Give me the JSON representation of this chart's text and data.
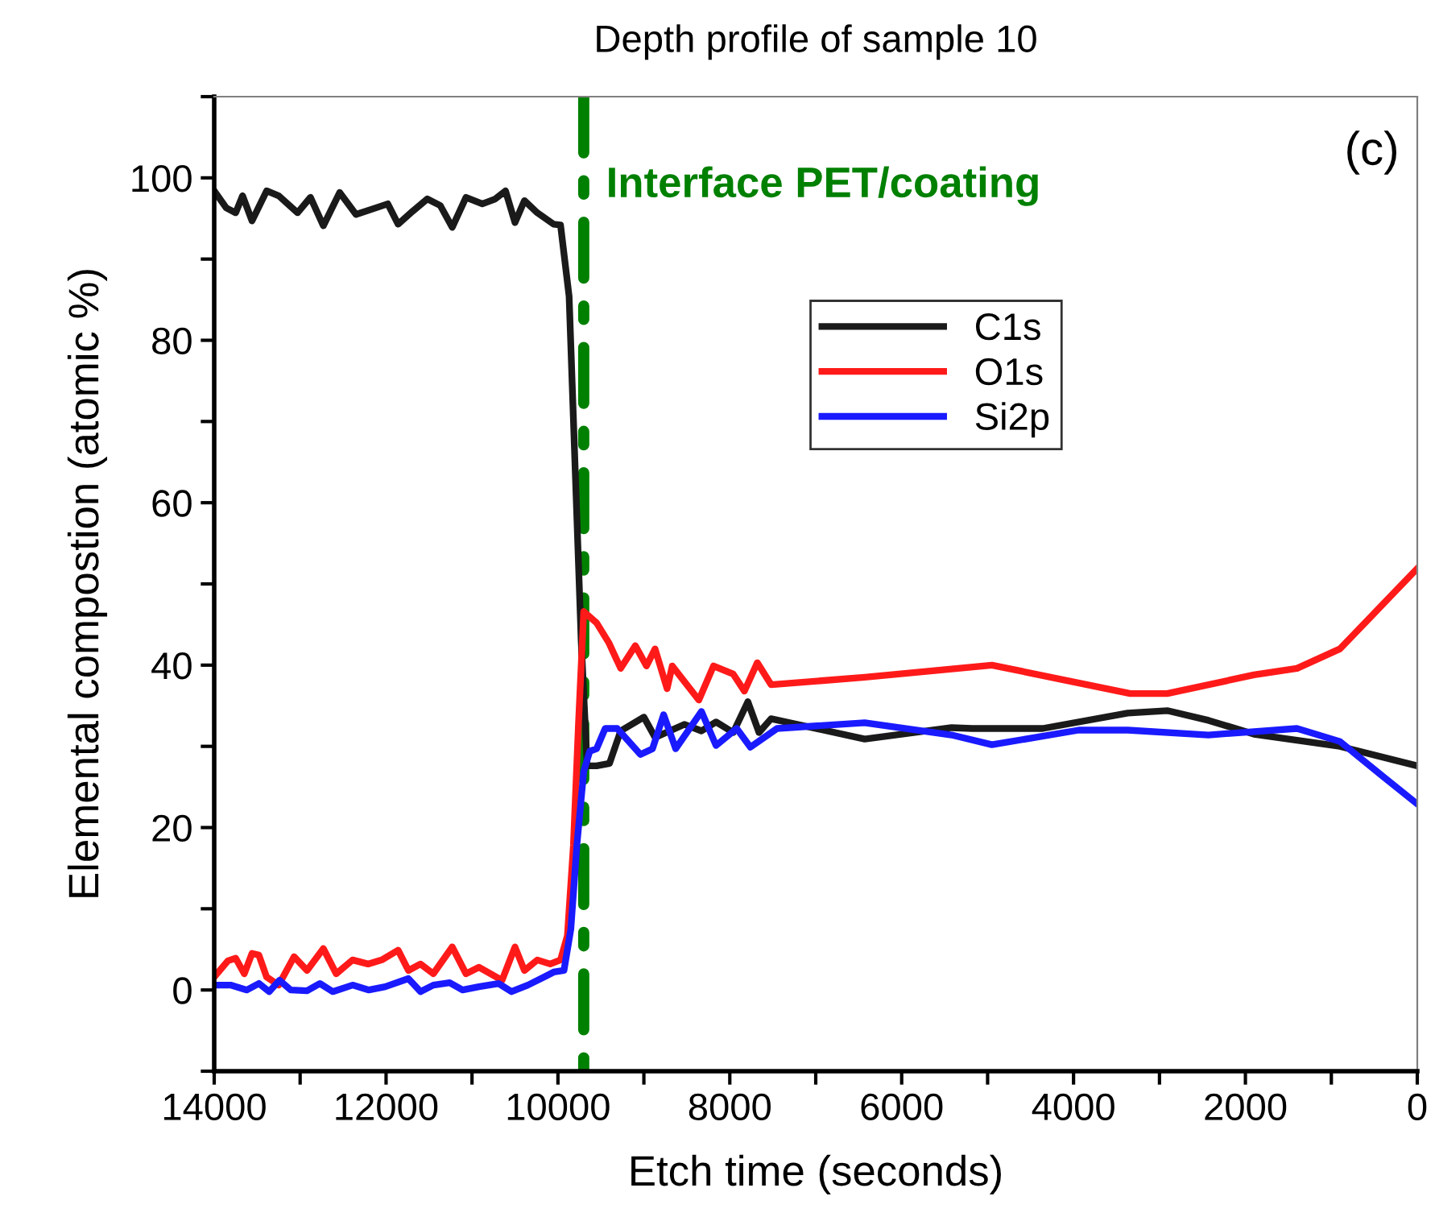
{
  "chart_data": {
    "type": "line",
    "title": "Depth profile of sample 10",
    "xlabel": "Etch time (seconds)",
    "ylabel": "Elemental compostion (atomic %)",
    "xlim": [
      14000,
      0
    ],
    "ylim": [
      -10,
      110
    ],
    "xticks": [
      14000,
      {
        "value": 13000,
        "label": null
      },
      12000,
      {
        "value": 11000,
        "label": null
      },
      10000,
      {
        "value": 9000,
        "label": null
      },
      8000,
      {
        "value": 7000,
        "label": null
      },
      6000,
      {
        "value": 5000,
        "label": null
      },
      4000,
      {
        "value": 3000,
        "label": null
      },
      2000,
      {
        "value": 1000,
        "label": null
      },
      0
    ],
    "yticks": [
      {
        "value": -10,
        "label": null
      },
      0,
      {
        "value": 10,
        "label": null
      },
      20,
      {
        "value": 30,
        "label": null
      },
      40,
      {
        "value": 50,
        "label": null
      },
      60,
      {
        "value": 70,
        "label": null
      },
      80,
      {
        "value": 90,
        "label": null
      },
      100,
      {
        "value": 110,
        "label": null
      }
    ],
    "grid": false,
    "legend": "top",
    "marker": "none",
    "line_style": "solid",
    "annotations": [
      "(c)"
    ],
    "ref_lines": [
      {
        "axis": "x",
        "value": 9700,
        "label": "Interface PET/coating",
        "color": "#008000",
        "line_style": "dashdot"
      }
    ],
    "series": [
      {
        "name": "C1s",
        "color": "#1a1a1a",
        "x": [
          14000,
          13860,
          13750,
          13670,
          13560,
          13390,
          13250,
          13030,
          12880,
          12730,
          12540,
          12350,
          12120,
          11980,
          11860,
          11690,
          11520,
          11370,
          11230,
          11070,
          10880,
          10730,
          10610,
          10500,
          10390,
          10240,
          10050,
          9970,
          9870,
          9800,
          9730,
          9660,
          9550,
          9400,
          9270,
          9000,
          8870,
          8530,
          8330,
          8160,
          7960,
          7790,
          7660,
          7520,
          6430,
          5420,
          5180,
          4360,
          3370,
          2910,
          2430,
          1900,
          900,
          0
        ],
        "values": [
          98.4,
          96.3,
          95.7,
          97.8,
          94.7,
          98.4,
          97.8,
          95.7,
          97.6,
          94.1,
          98.2,
          95.5,
          96.3,
          96.8,
          94.3,
          95.9,
          97.4,
          96.6,
          93.9,
          97.6,
          96.8,
          97.4,
          98.4,
          94.5,
          97.2,
          95.7,
          94.3,
          94.2,
          85.4,
          64.3,
          43.2,
          27.6,
          27.6,
          27.9,
          31.9,
          33.6,
          31.1,
          32.7,
          31.9,
          33,
          31.7,
          35.5,
          31.7,
          33.4,
          30.9,
          32.3,
          32.2,
          32.2,
          34.1,
          34.4,
          33.2,
          31.5,
          30,
          27.6
        ]
      },
      {
        "name": "O1s",
        "color": "#ff1a1a",
        "x": [
          14000,
          13840,
          13750,
          13650,
          13560,
          13480,
          13390,
          13250,
          13070,
          12920,
          12730,
          12580,
          12390,
          12210,
          12050,
          11860,
          11740,
          11600,
          11450,
          11230,
          11070,
          10920,
          10650,
          10500,
          10390,
          10240,
          10090,
          9970,
          9890,
          9820,
          9760,
          9700,
          9550,
          9410,
          9270,
          9100,
          8970,
          8870,
          8730,
          8670,
          8360,
          8190,
          7960,
          7830,
          7680,
          7520,
          6430,
          4950,
          3340,
          2910,
          1900,
          1400,
          900,
          400,
          0
        ],
        "values": [
          1.6,
          3.6,
          3.9,
          2,
          4.5,
          4.3,
          1.6,
          0.6,
          4.1,
          2.4,
          5.1,
          2,
          3.7,
          3.2,
          3.7,
          4.9,
          2.4,
          3.2,
          2,
          5.3,
          2,
          2.8,
          1.2,
          5.3,
          2.4,
          3.7,
          3.2,
          3.7,
          6.7,
          17.8,
          33,
          46.6,
          45.2,
          42.8,
          39.6,
          42.4,
          39.9,
          42,
          37.1,
          39.9,
          35.7,
          39.9,
          38.9,
          36.8,
          40.3,
          37.6,
          38.5,
          40,
          36.5,
          36.5,
          38.8,
          39.6,
          42,
          47.5,
          51.9
        ]
      },
      {
        "name": "Si2p",
        "color": "#1a1aff",
        "x": [
          14000,
          13810,
          13620,
          13480,
          13360,
          13240,
          13110,
          12920,
          12770,
          12620,
          12390,
          12200,
          12010,
          11740,
          11600,
          11450,
          11260,
          11110,
          10920,
          10690,
          10540,
          10350,
          10160,
          10050,
          9930,
          9850,
          9780,
          9700,
          9630,
          9550,
          9450,
          9310,
          9040,
          8900,
          8770,
          8630,
          8330,
          8160,
          7920,
          7760,
          7450,
          6430,
          5420,
          4950,
          3940,
          3370,
          2430,
          1400,
          900,
          400,
          0
        ],
        "values": [
          0.6,
          0.6,
          0,
          0.8,
          -0.2,
          1.2,
          0,
          -0.1,
          0.8,
          -0.2,
          0.6,
          0,
          0.4,
          1.4,
          -0.2,
          0.6,
          0.9,
          0,
          0.4,
          0.8,
          -0.2,
          0.6,
          1.6,
          2.2,
          2.4,
          7.5,
          17.8,
          26.9,
          29.4,
          29.7,
          32.2,
          32.2,
          29,
          29.7,
          33.9,
          29.7,
          34.3,
          30.1,
          32.2,
          29.9,
          32.2,
          32.9,
          31.4,
          30.2,
          32,
          32,
          31.4,
          32.2,
          30.6,
          26.3,
          22.9
        ]
      }
    ]
  }
}
